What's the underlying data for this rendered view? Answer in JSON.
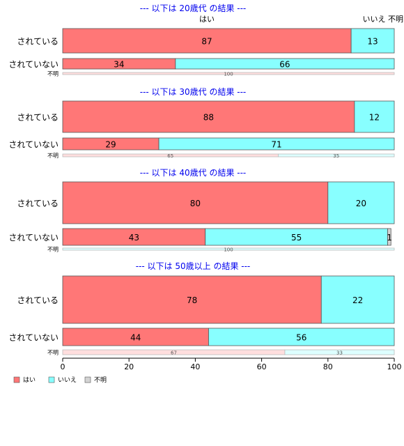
{
  "chart_data": {
    "type": "bar",
    "orientation": "horizontal",
    "stacked": true,
    "xlim": [
      0,
      100
    ],
    "xticks": [
      0,
      20,
      40,
      60,
      80,
      100
    ],
    "series_names": [
      "はい",
      "いいえ",
      "不明"
    ],
    "colors": {
      "yes": "#ff7777",
      "no": "#88ffff",
      "unknown": "#d3d3d3",
      "yes_light": "#ffdede",
      "no_light": "#ddffff",
      "title": "#0000ee"
    },
    "header_labels": [
      "はい",
      "いいえ",
      "不明"
    ],
    "legend": {
      "position": "bottom-left",
      "items": [
        "はい",
        "いいえ",
        "不明"
      ]
    },
    "panels": [
      {
        "title": "--- 以下は 20歳代 の結果 ---",
        "rows": [
          {
            "label": "されている",
            "values": [
              87,
              13,
              0
            ]
          },
          {
            "label": "されていない",
            "values": [
              34,
              66,
              0
            ]
          },
          {
            "label": "不明",
            "values": [
              100,
              0,
              0
            ]
          }
        ]
      },
      {
        "title": "--- 以下は 30歳代 の結果 ---",
        "rows": [
          {
            "label": "されている",
            "values": [
              88,
              12,
              0
            ]
          },
          {
            "label": "されていない",
            "values": [
              29,
              71,
              0
            ]
          },
          {
            "label": "不明",
            "values": [
              65,
              35,
              0
            ]
          }
        ]
      },
      {
        "title": "--- 以下は 40歳代 の結果 ---",
        "rows": [
          {
            "label": "されている",
            "values": [
              80,
              20,
              0
            ]
          },
          {
            "label": "されていない",
            "values": [
              43,
              55,
              1
            ]
          },
          {
            "label": "不明",
            "values": [
              0,
              100,
              0
            ]
          }
        ]
      },
      {
        "title": "--- 以下は 50歳以上 の結果 ---",
        "rows": [
          {
            "label": "されている",
            "values": [
              78,
              22,
              0
            ]
          },
          {
            "label": "されていない",
            "values": [
              44,
              56,
              0
            ]
          },
          {
            "label": "不明",
            "values": [
              67,
              33,
              0
            ]
          }
        ]
      }
    ]
  }
}
